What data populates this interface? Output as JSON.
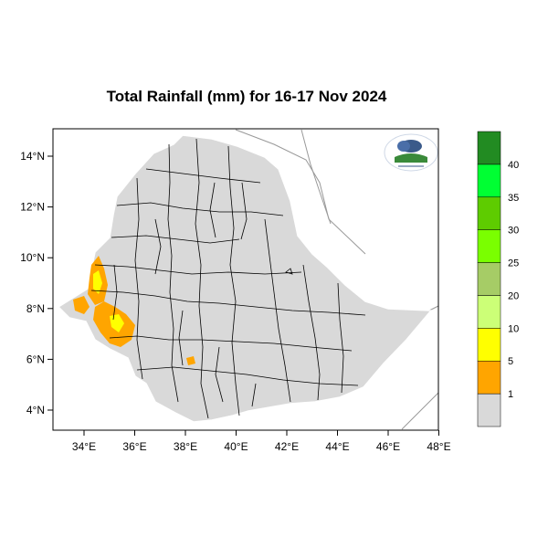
{
  "title": "Total Rainfall (mm) for 16-17 Nov 2024",
  "map": {
    "lon_ticks": [
      "34°E",
      "36°E",
      "38°E",
      "40°E",
      "42°E",
      "44°E",
      "46°E",
      "48°E"
    ],
    "lat_ticks": [
      "14°N",
      "12°N",
      "10°N",
      "8°N",
      "6°N",
      "4°N"
    ],
    "lon_range": [
      33.0,
      48.2
    ],
    "lat_range": [
      3.2,
      15.0
    ]
  },
  "legend": {
    "labels": [
      "1",
      "5",
      "10",
      "20",
      "25",
      "30",
      "35",
      "40"
    ],
    "colors": [
      "#d9d9d9",
      "#ffa500",
      "#ffff00",
      "#ccff77",
      "#a6cc66",
      "#7aff00",
      "#5ecc00",
      "#00ff33",
      "#228b22"
    ]
  },
  "colors": {
    "land": "#d9d9d9",
    "rain_1_5": "#ffa500",
    "rain_5_10": "#ffff00"
  },
  "logo": {
    "icon": "meteorology-agency-logo"
  }
}
